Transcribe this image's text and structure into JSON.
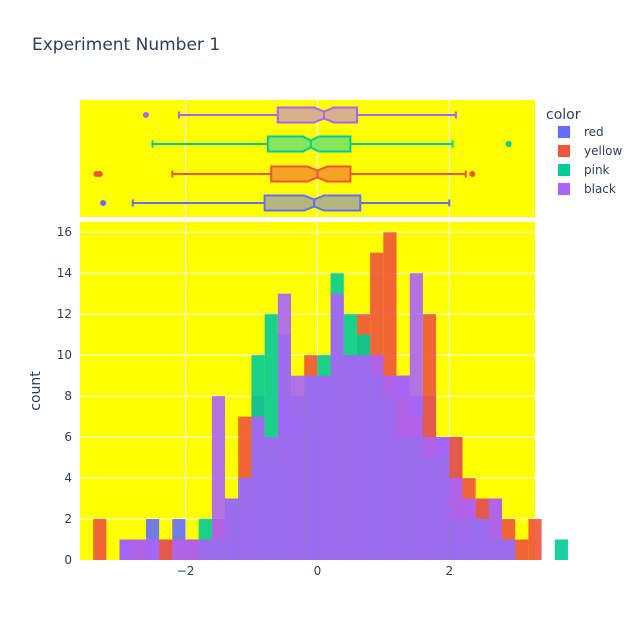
{
  "chart_data": {
    "type": "bar",
    "title": "Experiment Number 1",
    "xlabel": "",
    "ylabel": "count",
    "legend": {
      "title": "color",
      "placement": "right"
    },
    "plot_bgcolor": "#ffff00",
    "grid": true,
    "x_ticks": [
      {
        "value": -2,
        "label": "−2"
      },
      {
        "value": 0,
        "label": "0"
      },
      {
        "value": 2,
        "label": "2"
      }
    ],
    "y_ticks": [
      0,
      2,
      4,
      6,
      8,
      10,
      12,
      14,
      16
    ],
    "xlim": [
      -3.6,
      3.3
    ],
    "ylim": [
      0,
      16.5
    ],
    "bin_start": -3.4,
    "bin_width": 0.2,
    "barmode": "overlay",
    "series": [
      {
        "name": "red",
        "color": "#636efa",
        "counts": [
          0,
          0,
          1,
          1,
          2,
          1,
          2,
          1,
          1,
          1,
          3,
          3,
          6,
          5,
          8,
          7,
          8,
          6,
          9,
          10,
          10,
          10,
          9,
          9,
          8,
          8,
          6,
          6,
          3,
          3,
          1,
          1,
          0,
          0,
          0,
          0,
          0
        ],
        "box": {
          "q1": -0.8,
          "median": -0.05,
          "q3": 0.65,
          "lowerfence": -2.8,
          "upperfence": 2.0,
          "notch": 0.15,
          "outliers": [
            -3.25
          ]
        }
      },
      {
        "name": "yellow",
        "color": "#ef553b",
        "counts": [
          2,
          0,
          0,
          1,
          0,
          1,
          1,
          1,
          1,
          2,
          3,
          7,
          8,
          5,
          5,
          6,
          10,
          8,
          9,
          10,
          12,
          15,
          16,
          8,
          7,
          12,
          5,
          6,
          4,
          3,
          3,
          2,
          1,
          2,
          0,
          0,
          0
        ],
        "box": {
          "q1": -0.7,
          "median": 0.0,
          "q3": 0.5,
          "lowerfence": -2.2,
          "upperfence": 2.25,
          "notch": 0.15,
          "outliers": [
            -3.35,
            -3.3,
            2.35
          ]
        }
      },
      {
        "name": "pink",
        "color": "#00cc96",
        "counts": [
          0,
          0,
          0,
          0,
          0,
          0,
          0,
          0,
          2,
          1,
          3,
          4,
          10,
          12,
          11,
          8,
          9,
          10,
          14,
          12,
          11,
          9,
          8,
          6,
          6,
          5,
          5,
          2,
          2,
          2,
          1,
          1,
          0,
          0,
          0,
          1,
          0
        ],
        "box": {
          "q1": -0.75,
          "median": -0.1,
          "q3": 0.5,
          "lowerfence": -2.5,
          "upperfence": 2.05,
          "notch": 0.12,
          "outliers": [
            2.9
          ]
        }
      },
      {
        "name": "black",
        "color": "#ab63fa",
        "counts": [
          0,
          0,
          1,
          1,
          1,
          0,
          1,
          1,
          1,
          8,
          3,
          4,
          7,
          6,
          13,
          9,
          9,
          9,
          13,
          10,
          10,
          10,
          9,
          9,
          14,
          6,
          6,
          4,
          3,
          2,
          3,
          1,
          0,
          0,
          0,
          0,
          0
        ],
        "box": {
          "q1": -0.6,
          "median": 0.1,
          "q3": 0.6,
          "lowerfence": -2.1,
          "upperfence": 2.1,
          "notch": 0.15,
          "outliers": [
            -2.6
          ]
        }
      }
    ],
    "box_fill_colors": {
      "red": "#b5b57c",
      "yellow": "#f4a423",
      "pink": "#86e655",
      "black": "#d6b18a"
    }
  }
}
